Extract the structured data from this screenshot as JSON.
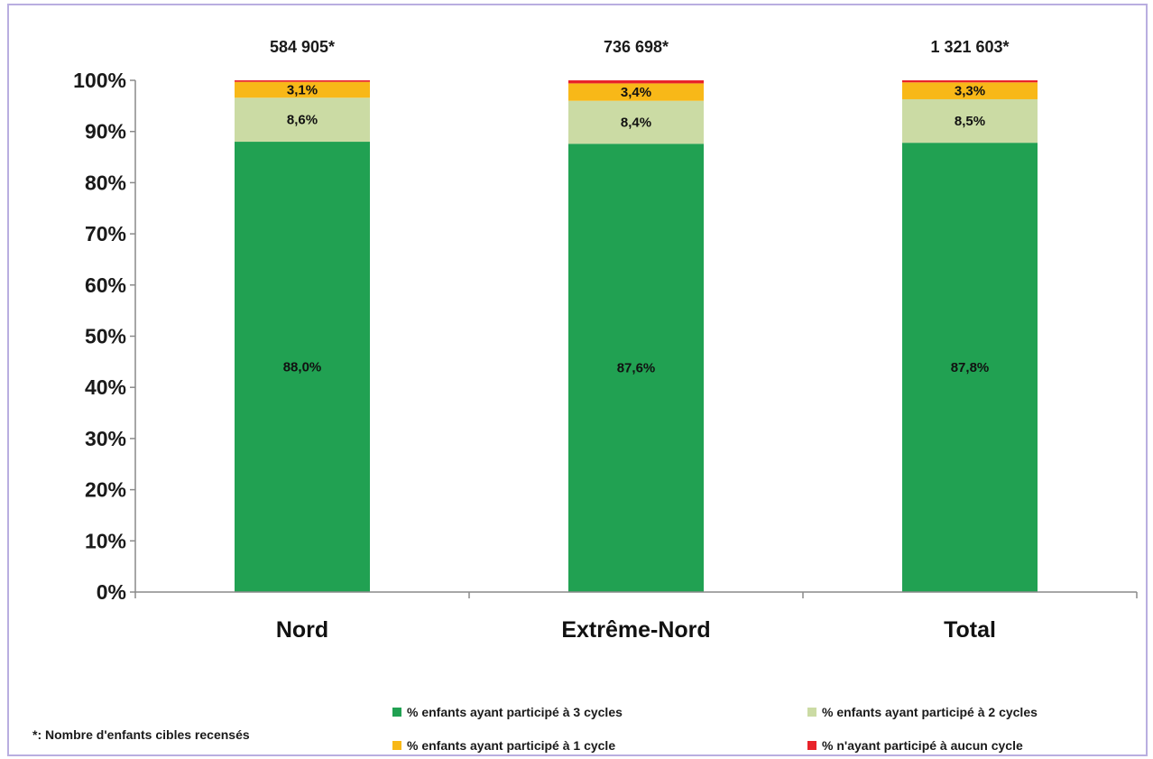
{
  "chart_data": {
    "type": "bar",
    "stacked": true,
    "percent": true,
    "categories": [
      "Nord",
      "Extrême-Nord",
      "Total"
    ],
    "category_totals": [
      "584 905*",
      "736 698*",
      "1 321 603*"
    ],
    "series": [
      {
        "name": "% enfants ayant participé à 3 cycles",
        "color": "#21a152",
        "values": [
          88.0,
          87.6,
          87.8
        ],
        "labels": [
          "88,0%",
          "87,6%",
          "87,8%"
        ]
      },
      {
        "name": "% enfants ayant participé à 2 cycles",
        "color": "#cbdba4",
        "values": [
          8.6,
          8.4,
          8.5
        ],
        "labels": [
          "8,6%",
          "8,4%",
          "8,5%"
        ]
      },
      {
        "name": "% enfants ayant participé à 1 cycle",
        "color": "#f8b818",
        "values": [
          3.1,
          3.4,
          3.3
        ],
        "labels": [
          "3,1%",
          "3,4%",
          "3,3%"
        ]
      },
      {
        "name": "% n'ayant participé à aucun cycle",
        "color": "#e8232a",
        "values": [
          0.3,
          0.6,
          0.4
        ],
        "labels": [
          "",
          "",
          ""
        ]
      }
    ],
    "ylim": [
      0,
      100
    ],
    "yticks": [
      "0%",
      "10%",
      "20%",
      "30%",
      "40%",
      "50%",
      "60%",
      "70%",
      "80%",
      "90%",
      "100%"
    ],
    "grid": false,
    "legend_position": "bottom"
  },
  "footnote": "*: Nombre d'enfants cibles recensés"
}
